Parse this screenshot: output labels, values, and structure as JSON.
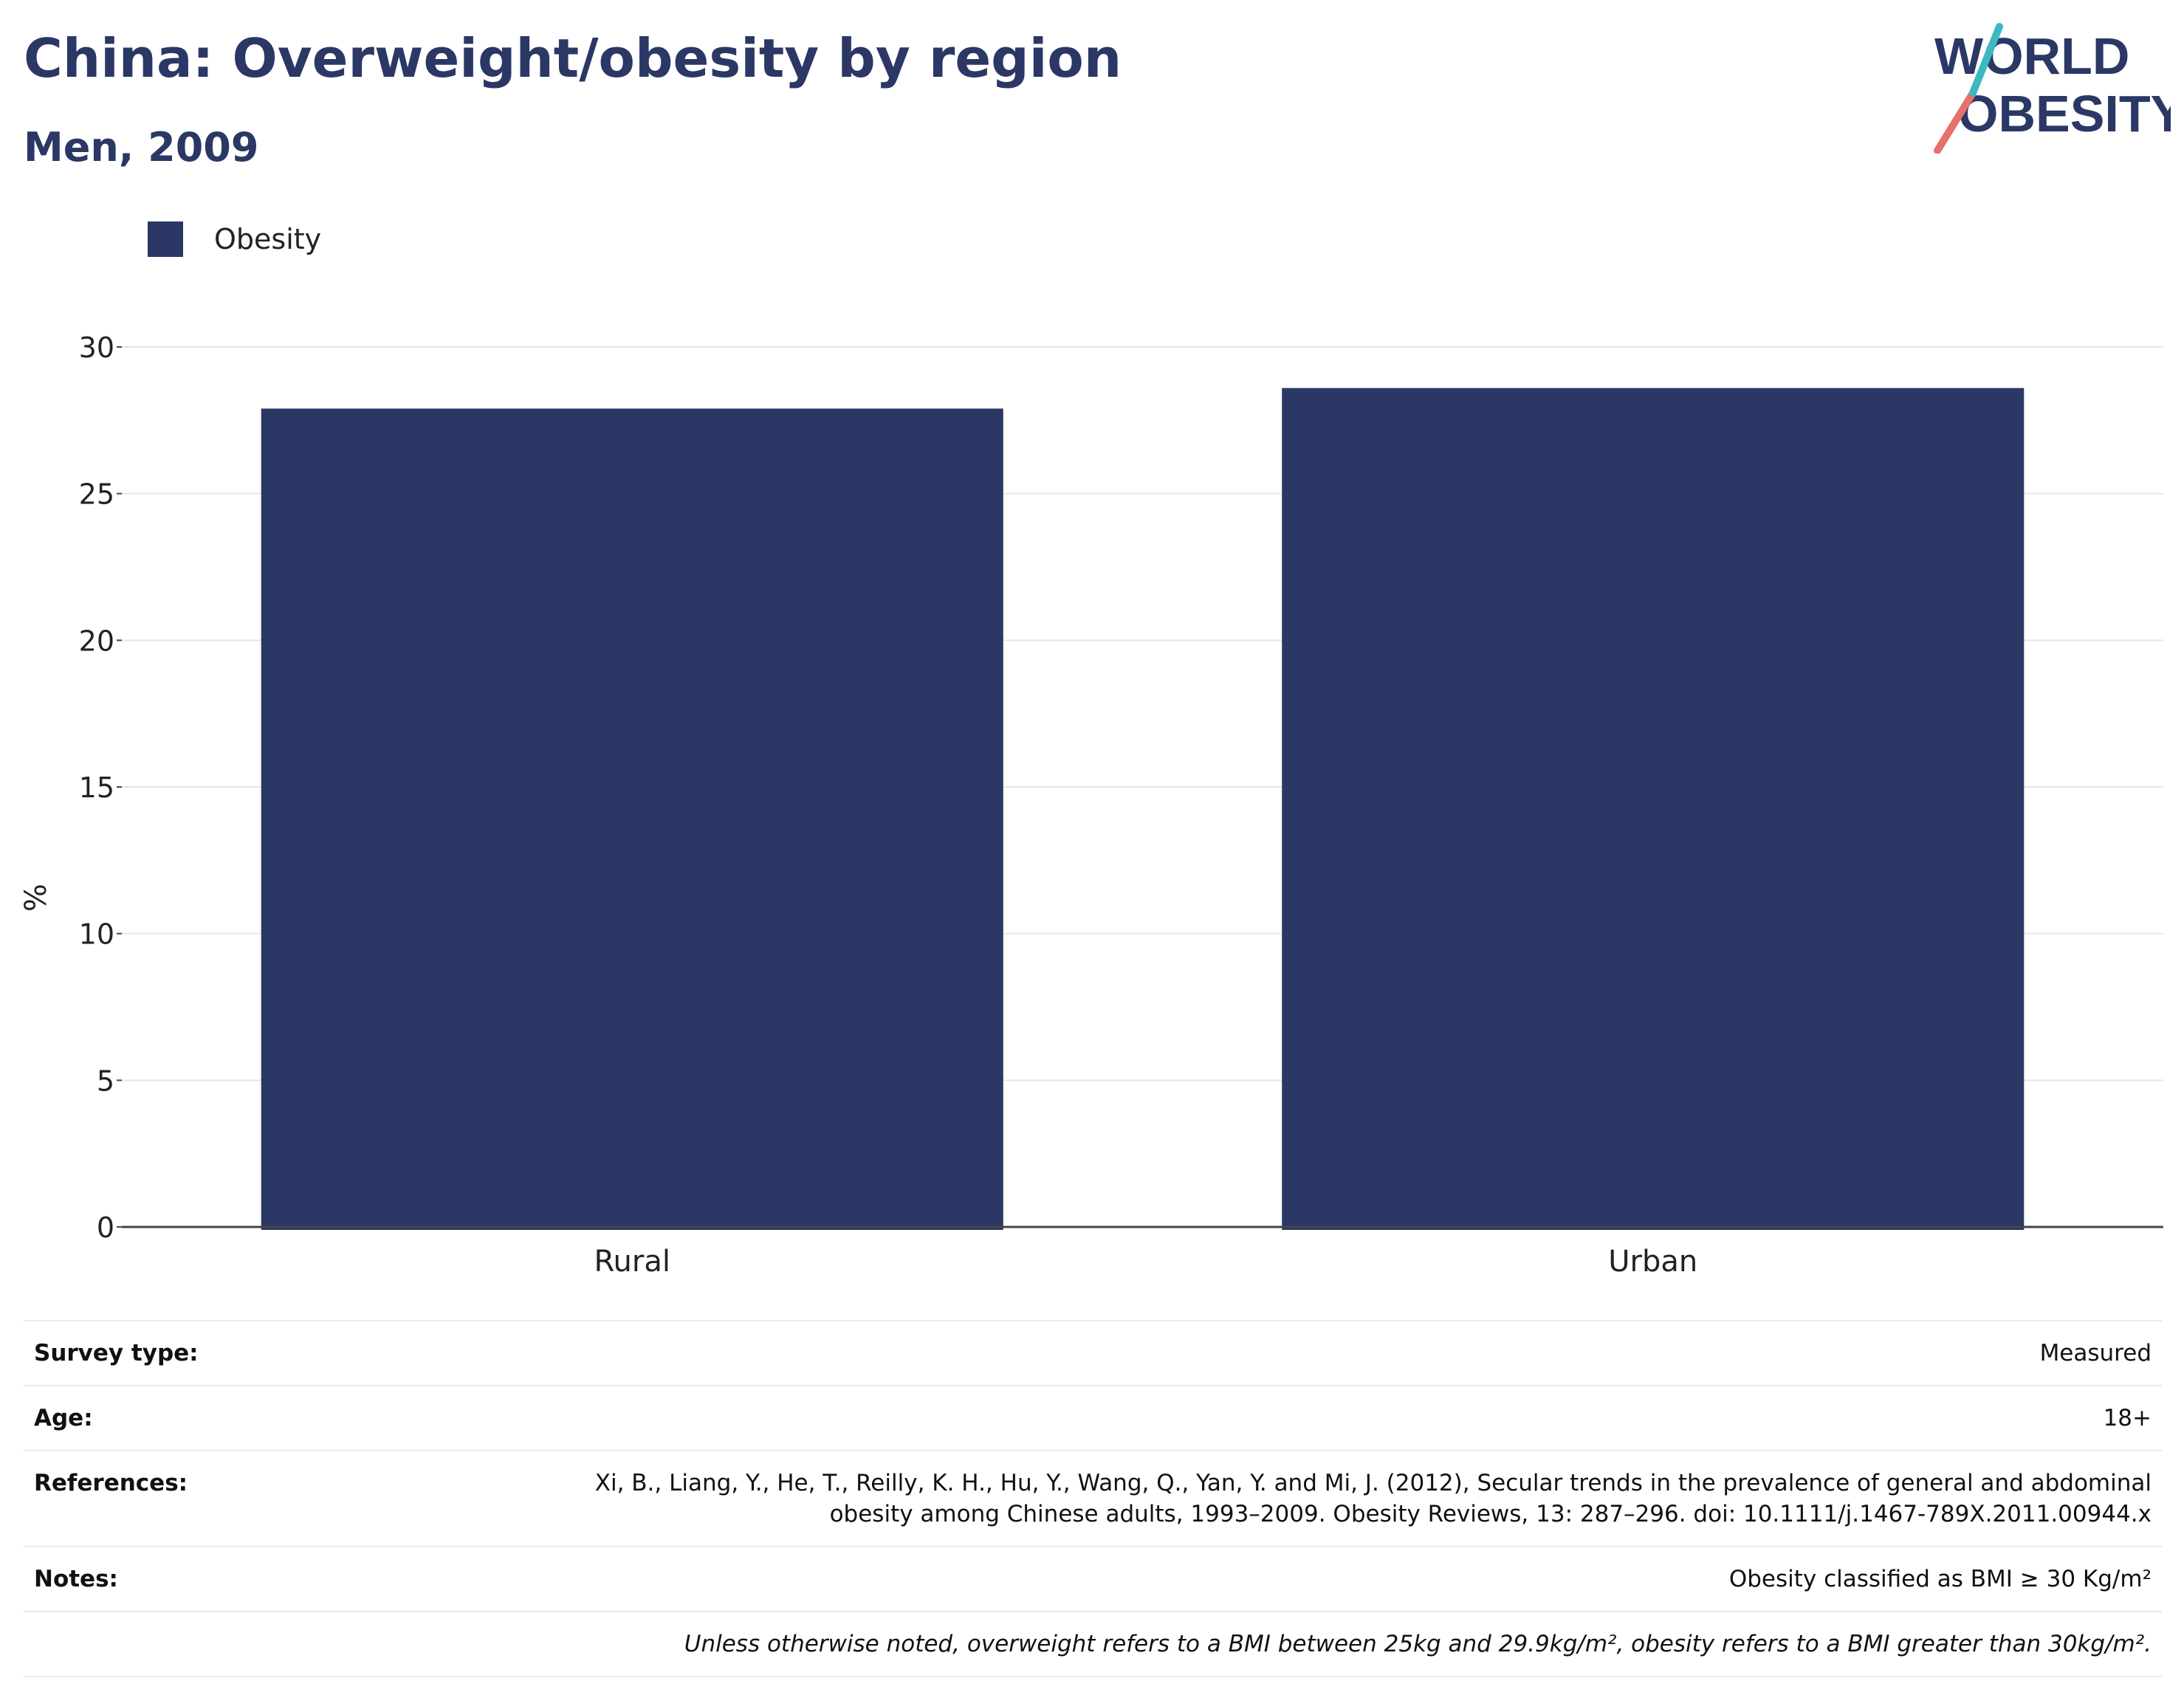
{
  "header": {
    "title": "China: Overweight/obesity by region",
    "subtitle": "Men, 2009",
    "logo_line1": "WORLD",
    "logo_line2": "OBESITY"
  },
  "colors": {
    "bar": "#2b3765",
    "title": "#2b3765",
    "logo_text": "#2b3765",
    "logo_accent_teal": "#3bb8c0",
    "logo_accent_coral": "#e8706a"
  },
  "chart_data": {
    "type": "bar",
    "categories": [
      "Rural",
      "Urban"
    ],
    "series": [
      {
        "name": "Obesity",
        "values": [
          27.9,
          28.6
        ]
      }
    ],
    "ylabel": "%",
    "xlabel": "",
    "ylim": [
      0,
      30
    ],
    "yticks": [
      0,
      5,
      10,
      15,
      20,
      25,
      30
    ],
    "grid": true,
    "legend_position": "top-left"
  },
  "info": {
    "survey_type_label": "Survey type:",
    "survey_type_value": "Measured",
    "age_label": "Age:",
    "age_value": "18+",
    "references_label": "References:",
    "references_line1": "Xi, B., Liang, Y., He, T., Reilly, K. H., Hu, Y., Wang, Q., Yan, Y. and Mi, J. (2012), Secular trends in the prevalence of general and abdominal",
    "references_line2": "obesity among Chinese adults, 1993–2009. Obesity Reviews, 13: 287–296. doi: 10.1111/j.1467-789X.2011.00944.x",
    "notes_label": "Notes:",
    "notes_value": "Obesity classified as BMI ≥ 30 Kg/m²",
    "footnote": "Unless otherwise noted, overweight refers to a BMI between 25kg and 29.9kg/m², obesity refers to a BMI greater than 30kg/m²."
  }
}
